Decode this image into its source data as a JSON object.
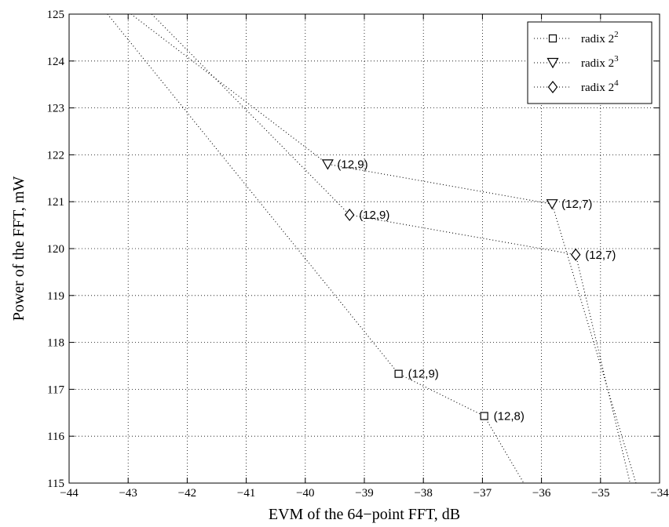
{
  "chart_data": {
    "type": "line",
    "title": "",
    "xlabel": "EVM of the 64−point FFT, dB",
    "ylabel": "Power of the FFT, mW",
    "xlim": [
      -44,
      -34
    ],
    "ylim": [
      115,
      125
    ],
    "xticks": [
      -44,
      -43,
      -42,
      -41,
      -40,
      -39,
      -38,
      -37,
      -36,
      -35,
      -34
    ],
    "xtick_labels": [
      "−44",
      "−43",
      "−42",
      "−41",
      "−40",
      "−39",
      "−38",
      "−37",
      "−36",
      "−35",
      "−34"
    ],
    "yticks": [
      115,
      116,
      117,
      118,
      119,
      120,
      121,
      122,
      123,
      124,
      125
    ],
    "ytick_labels": [
      "115",
      "116",
      "117",
      "118",
      "119",
      "120",
      "121",
      "122",
      "123",
      "124",
      "125"
    ],
    "grid": true,
    "legend_position": "top-right",
    "line_style": "dotted",
    "series": [
      {
        "name": "radix 2",
        "name_sup": "2",
        "marker": "square",
        "x": [
          -43.35,
          -38.42,
          -36.97,
          -36.3
        ],
        "y": [
          125.0,
          117.33,
          116.43,
          115.0
        ],
        "labeled_points": [
          {
            "x": -38.42,
            "y": 117.33,
            "label": "(12,9)"
          },
          {
            "x": -36.97,
            "y": 116.43,
            "label": "(12,8)"
          }
        ]
      },
      {
        "name": "radix 2",
        "name_sup": "3",
        "marker": "triangle-down",
        "x": [
          -42.95,
          -39.62,
          -35.82,
          -34.4
        ],
        "y": [
          125.0,
          121.8,
          120.95,
          115.0
        ],
        "labeled_points": [
          {
            "x": -39.62,
            "y": 121.8,
            "label": "(12,9)"
          },
          {
            "x": -35.82,
            "y": 120.95,
            "label": "(12,7)"
          }
        ]
      },
      {
        "name": "radix 2",
        "name_sup": "4",
        "marker": "diamond",
        "x": [
          -42.6,
          -39.25,
          -35.42,
          -34.5
        ],
        "y": [
          125.0,
          120.72,
          119.87,
          115.0
        ],
        "labeled_points": [
          {
            "x": -39.25,
            "y": 120.72,
            "label": "(12,9)"
          },
          {
            "x": -35.42,
            "y": 119.87,
            "label": "(12,7)"
          }
        ]
      }
    ]
  }
}
